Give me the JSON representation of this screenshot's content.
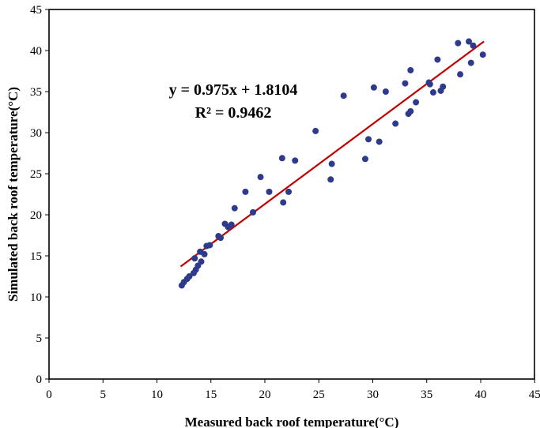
{
  "chart_data": {
    "type": "scatter",
    "xlabel": "Measured back roof temperature(°C)",
    "ylabel": "Simulated back roof temperature(°C)",
    "xlim": [
      0,
      45
    ],
    "ylim": [
      0,
      45
    ],
    "x_ticks": [
      "0",
      "5",
      "10",
      "15",
      "20",
      "25",
      "30",
      "35",
      "40",
      "45"
    ],
    "y_ticks": [
      "0",
      "5",
      "10",
      "15",
      "20",
      "25",
      "30",
      "35",
      "40",
      "45"
    ],
    "grid": false,
    "marker_color": "#2e3a8c",
    "trendline_color": "#c00000",
    "trendline": {
      "slope": 0.975,
      "intercept": 1.8104,
      "x_range": [
        12.2,
        40.3
      ]
    },
    "annotations": {
      "equation": "y = 0.975x + 1.8104",
      "r2": "R² = 0.9462"
    },
    "points": [
      [
        12.3,
        11.4
      ],
      [
        12.5,
        11.8
      ],
      [
        12.8,
        12.2
      ],
      [
        13.0,
        12.5
      ],
      [
        13.4,
        12.9
      ],
      [
        13.6,
        13.3
      ],
      [
        13.5,
        14.7
      ],
      [
        13.8,
        13.8
      ],
      [
        14.0,
        15.5
      ],
      [
        14.1,
        14.3
      ],
      [
        14.4,
        15.2
      ],
      [
        14.6,
        16.2
      ],
      [
        14.9,
        16.3
      ],
      [
        15.7,
        17.4
      ],
      [
        15.9,
        17.2
      ],
      [
        16.3,
        18.9
      ],
      [
        16.6,
        18.5
      ],
      [
        16.9,
        18.8
      ],
      [
        17.2,
        20.8
      ],
      [
        18.2,
        22.8
      ],
      [
        18.9,
        20.3
      ],
      [
        19.6,
        24.6
      ],
      [
        20.4,
        22.8
      ],
      [
        21.6,
        26.9
      ],
      [
        21.7,
        21.5
      ],
      [
        22.2,
        22.8
      ],
      [
        22.8,
        26.6
      ],
      [
        24.7,
        30.2
      ],
      [
        26.1,
        24.3
      ],
      [
        26.2,
        26.2
      ],
      [
        27.3,
        34.5
      ],
      [
        29.3,
        26.8
      ],
      [
        29.6,
        29.2
      ],
      [
        30.1,
        35.5
      ],
      [
        30.6,
        28.9
      ],
      [
        31.2,
        35.0
      ],
      [
        32.1,
        31.1
      ],
      [
        33.0,
        36.0
      ],
      [
        33.3,
        32.3
      ],
      [
        33.5,
        32.6
      ],
      [
        33.5,
        37.6
      ],
      [
        34.0,
        33.7
      ],
      [
        35.2,
        36.1
      ],
      [
        35.3,
        35.9
      ],
      [
        35.6,
        34.9
      ],
      [
        36.0,
        38.9
      ],
      [
        36.3,
        35.1
      ],
      [
        36.5,
        35.6
      ],
      [
        37.9,
        40.9
      ],
      [
        38.1,
        37.1
      ],
      [
        38.9,
        41.1
      ],
      [
        39.1,
        38.5
      ],
      [
        39.3,
        40.6
      ],
      [
        40.2,
        39.5
      ]
    ]
  }
}
